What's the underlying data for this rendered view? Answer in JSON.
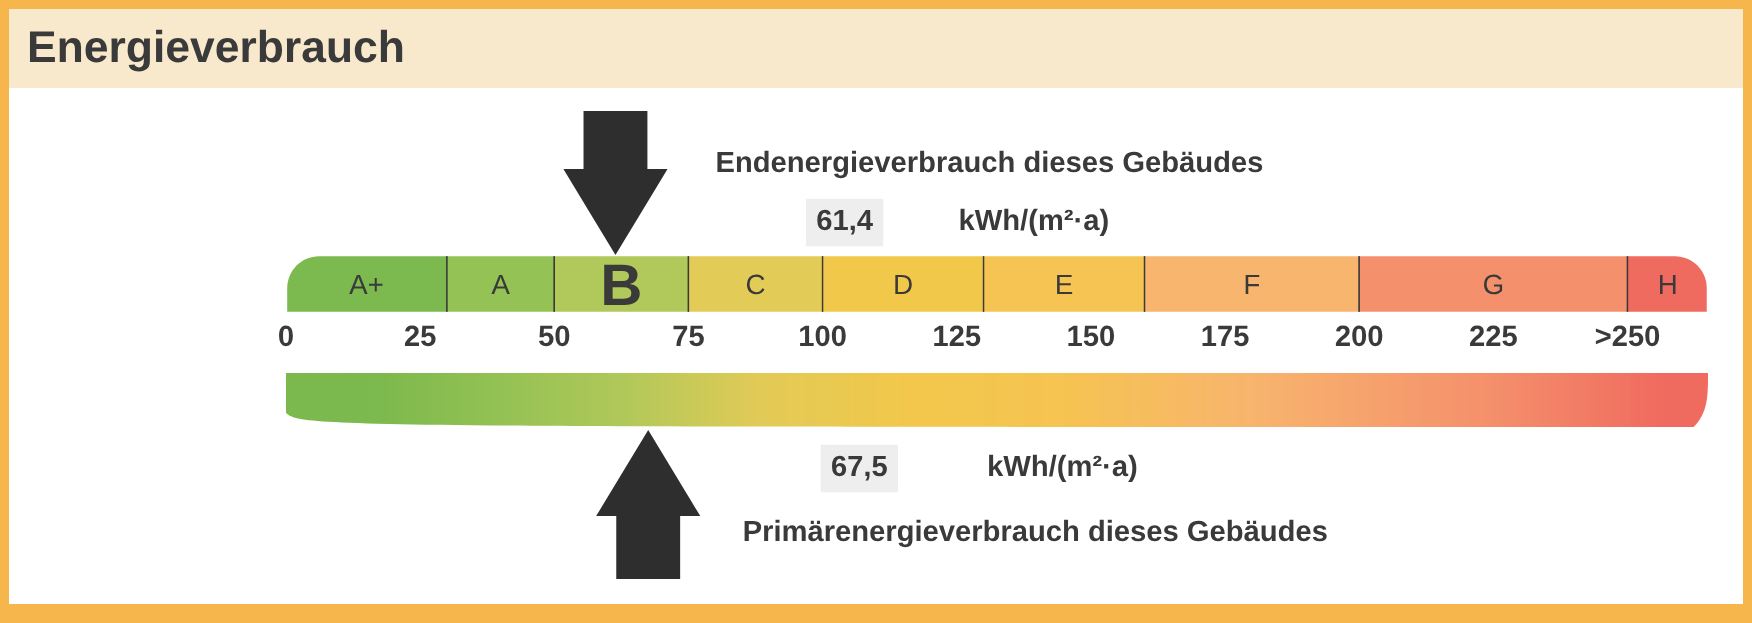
{
  "chart_data": {
    "type": "bar",
    "orientation": "horizontal",
    "stacked": true,
    "title": "Energieverbrauch",
    "categories": [
      null
    ],
    "xlim": [
      0,
      265
    ],
    "xticks": [
      0,
      25,
      50,
      75,
      100,
      125,
      150,
      175,
      200,
      225,
      {
        "value": 250,
        "label": ">250"
      }
    ],
    "series": [
      {
        "name": "A+",
        "color": "#7cb94e",
        "values": [
          30
        ]
      },
      {
        "name": "A",
        "color": "#95c254",
        "values": [
          20
        ]
      },
      {
        "name": "B",
        "color": "#b1c95a",
        "values": [
          25
        ]
      },
      {
        "name": "C",
        "color": "#e2cb57",
        "values": [
          25
        ]
      },
      {
        "name": "D",
        "color": "#f2c84b",
        "values": [
          30
        ]
      },
      {
        "name": "E",
        "color": "#f6c452",
        "values": [
          30
        ]
      },
      {
        "name": "F",
        "color": "#f8b56e",
        "values": [
          40
        ]
      },
      {
        "name": "G",
        "color": "#f5906c",
        "values": [
          50
        ]
      },
      {
        "name": "H",
        "color": "#f06b5f",
        "values": [
          15
        ]
      }
    ],
    "annotations": [
      "Endenergieverbrauch dieses Gebäudes",
      "61,4",
      "kWh/(m²·a)",
      "67,5",
      "kWh/(m²·a)",
      "Primärenergieverbrauch dieses Gebäudes"
    ]
  }
}
